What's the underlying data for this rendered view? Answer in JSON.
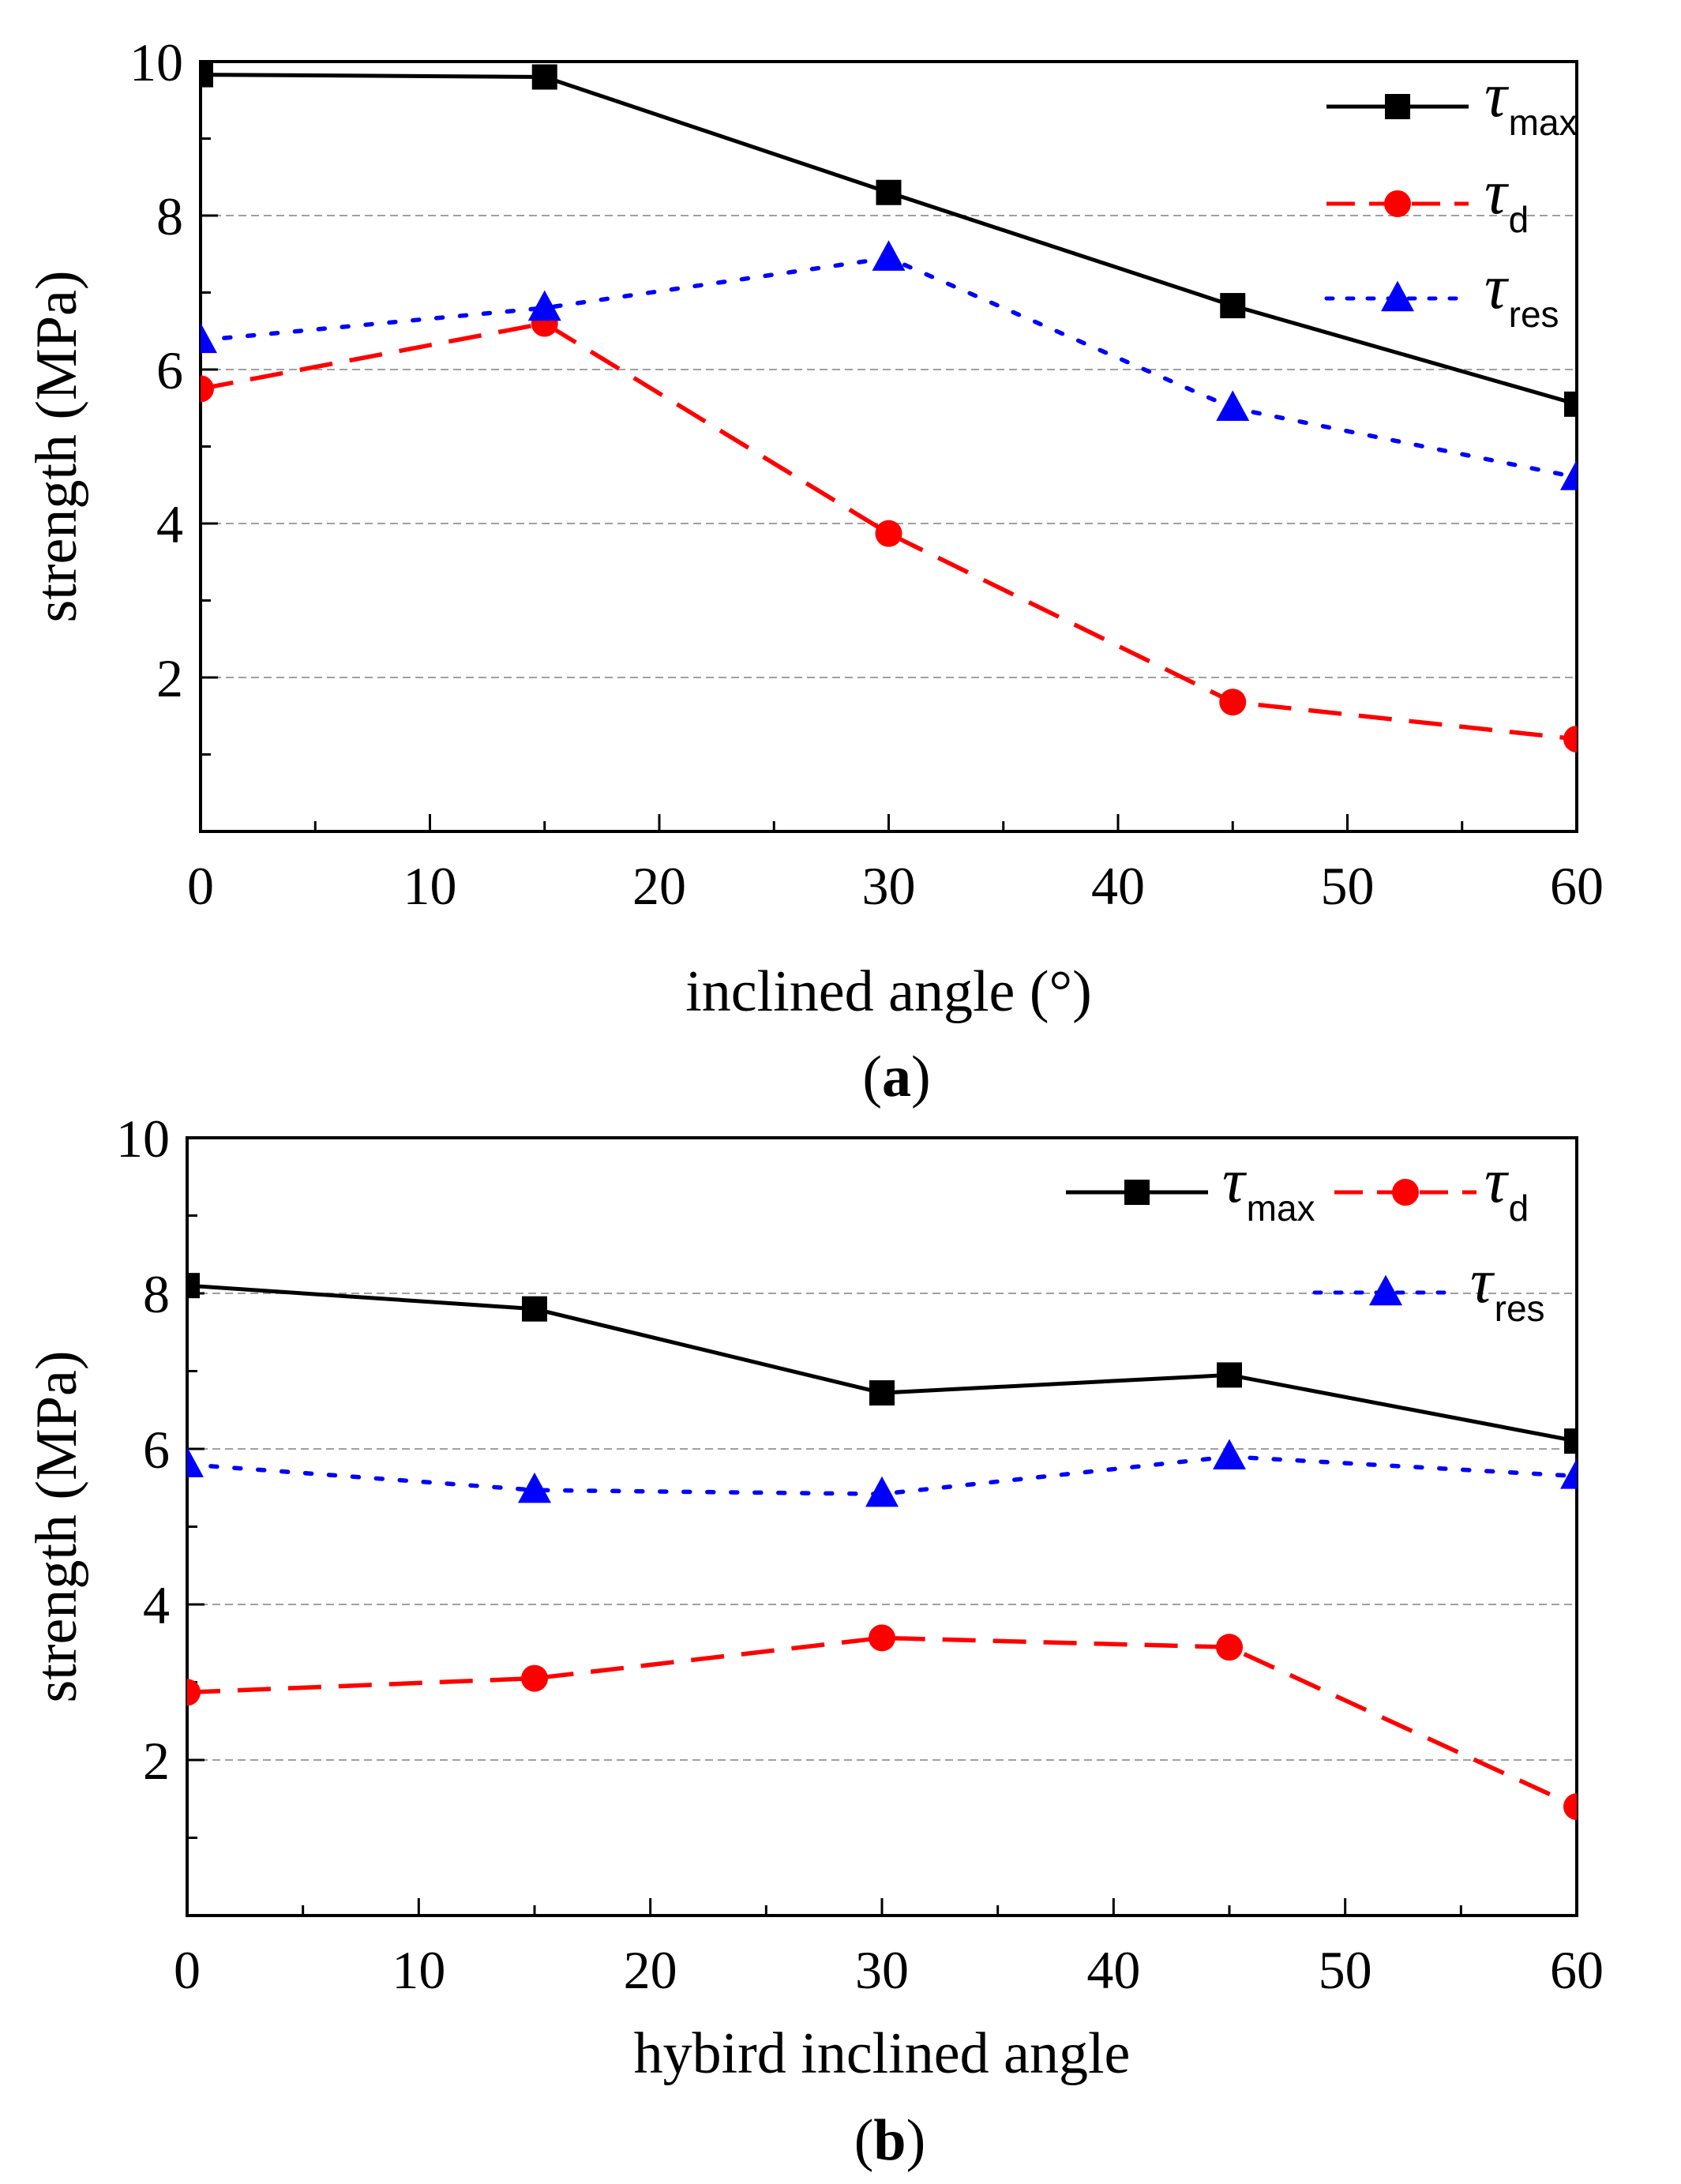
{
  "colors": {
    "max": "#000000",
    "d": "#ff0000",
    "res": "#0000ff",
    "grid": "#a0a0a0",
    "axis": "#000000"
  },
  "chart_data": [
    {
      "type": "line",
      "caption_open": "(",
      "caption_letter": "a",
      "caption_close": ")",
      "xlabel": "inclined angle (°)",
      "ylabel": "strength (MPa)",
      "xlim": [
        0,
        60
      ],
      "ylim": [
        0,
        10
      ],
      "xticks": [
        0,
        10,
        20,
        30,
        40,
        50,
        60
      ],
      "yticks": [
        2,
        4,
        6,
        8,
        10
      ],
      "grid": true,
      "legend_position": "top-right",
      "legend_layout": "column",
      "x": [
        0,
        15,
        30,
        45,
        60
      ],
      "series": [
        {
          "key": "max",
          "name": "τmax",
          "symbol": "τ",
          "sub": "max",
          "marker": "square",
          "line": "solid",
          "values": [
            9.83,
            9.8,
            8.3,
            6.83,
            5.55
          ]
        },
        {
          "key": "d",
          "name": "τd",
          "symbol": "τ",
          "sub": "d",
          "marker": "circle",
          "line": "dashed",
          "values": [
            5.75,
            6.6,
            3.87,
            1.68,
            1.2
          ]
        },
        {
          "key": "res",
          "name": "τres",
          "symbol": "τ",
          "sub": "res",
          "marker": "triangle",
          "line": "dotted",
          "values": [
            6.38,
            6.8,
            7.45,
            5.5,
            4.6
          ]
        }
      ]
    },
    {
      "type": "line",
      "caption_open": "(",
      "caption_letter": "b",
      "caption_close": ")",
      "xlabel": "hybird inclined angle",
      "ylabel": "strength (MPa)",
      "xlim": [
        0,
        60
      ],
      "ylim": [
        0,
        10
      ],
      "xticks": [
        0,
        10,
        20,
        30,
        40,
        50,
        60
      ],
      "yticks": [
        2,
        4,
        6,
        8,
        10
      ],
      "grid": true,
      "legend_position": "top-right",
      "legend_layout": "two-column",
      "x": [
        0,
        15,
        30,
        45,
        60
      ],
      "series": [
        {
          "key": "max",
          "name": "τmax",
          "symbol": "τ",
          "sub": "max",
          "marker": "square",
          "line": "solid",
          "values": [
            8.1,
            7.8,
            6.72,
            6.95,
            6.1
          ]
        },
        {
          "key": "d",
          "name": "τd",
          "symbol": "τ",
          "sub": "d",
          "marker": "circle",
          "line": "dashed",
          "values": [
            2.87,
            3.05,
            3.57,
            3.45,
            1.4
          ]
        },
        {
          "key": "res",
          "name": "τres",
          "symbol": "τ",
          "sub": "res",
          "marker": "triangle",
          "line": "dotted",
          "values": [
            5.8,
            5.47,
            5.42,
            5.9,
            5.65
          ]
        }
      ]
    }
  ]
}
